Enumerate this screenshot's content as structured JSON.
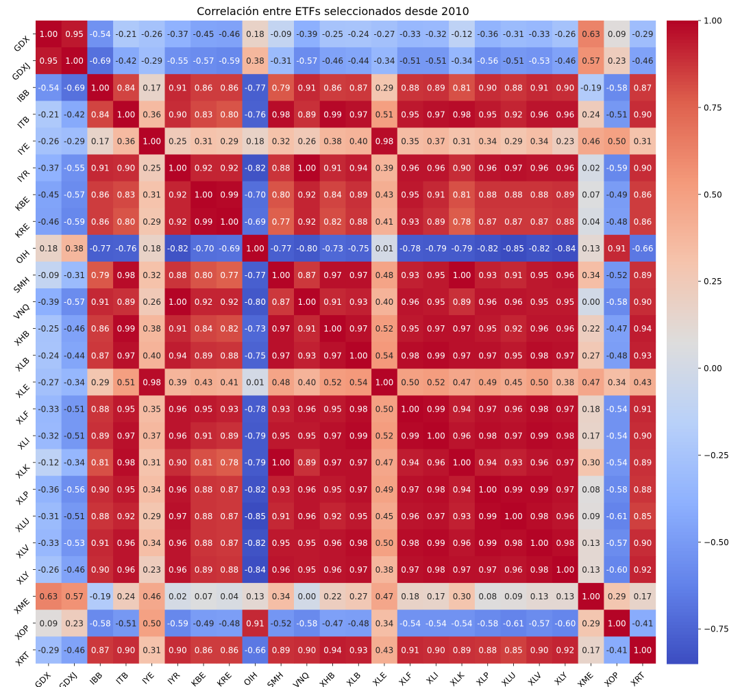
{
  "chart_data": {
    "type": "heatmap",
    "title": "Correlación entre ETFs seleccionados desde 2010",
    "xlabel": "",
    "ylabel": "",
    "labels": [
      "GDX",
      "GDXJ",
      "IBB",
      "ITB",
      "IYE",
      "IYR",
      "KBE",
      "KRE",
      "OIH",
      "SMH",
      "VNQ",
      "XHB",
      "XLB",
      "XLE",
      "XLF",
      "XLI",
      "XLK",
      "XLP",
      "XLU",
      "XLV",
      "XLY",
      "XME",
      "XOP",
      "XRT"
    ],
    "matrix": [
      [
        1.0,
        0.95,
        -0.54,
        -0.21,
        -0.26,
        -0.37,
        -0.45,
        -0.46,
        0.18,
        -0.09,
        -0.39,
        -0.25,
        -0.24,
        -0.27,
        -0.33,
        -0.32,
        -0.12,
        -0.36,
        -0.31,
        -0.33,
        -0.26,
        0.63,
        0.09,
        -0.29
      ],
      [
        0.95,
        1.0,
        -0.69,
        -0.42,
        -0.29,
        -0.55,
        -0.57,
        -0.59,
        0.38,
        -0.31,
        -0.57,
        -0.46,
        -0.44,
        -0.34,
        -0.51,
        -0.51,
        -0.34,
        -0.56,
        -0.51,
        -0.53,
        -0.46,
        0.57,
        0.23,
        -0.46
      ],
      [
        -0.54,
        -0.69,
        1.0,
        0.84,
        0.17,
        0.91,
        0.86,
        0.86,
        -0.77,
        0.79,
        0.91,
        0.86,
        0.87,
        0.29,
        0.88,
        0.89,
        0.81,
        0.9,
        0.88,
        0.91,
        0.9,
        -0.19,
        -0.58,
        0.87
      ],
      [
        -0.21,
        -0.42,
        0.84,
        1.0,
        0.36,
        0.9,
        0.83,
        0.8,
        -0.76,
        0.98,
        0.89,
        0.99,
        0.97,
        0.51,
        0.95,
        0.97,
        0.98,
        0.95,
        0.92,
        0.96,
        0.96,
        0.24,
        -0.51,
        0.9
      ],
      [
        -0.26,
        -0.29,
        0.17,
        0.36,
        1.0,
        0.25,
        0.31,
        0.29,
        0.18,
        0.32,
        0.26,
        0.38,
        0.4,
        0.98,
        0.35,
        0.37,
        0.31,
        0.34,
        0.29,
        0.34,
        0.23,
        0.46,
        0.5,
        0.31
      ],
      [
        -0.37,
        -0.55,
        0.91,
        0.9,
        0.25,
        1.0,
        0.92,
        0.92,
        -0.82,
        0.88,
        1.0,
        0.91,
        0.94,
        0.39,
        0.96,
        0.96,
        0.9,
        0.96,
        0.97,
        0.96,
        0.96,
        0.02,
        -0.59,
        0.9
      ],
      [
        -0.45,
        -0.57,
        0.86,
        0.83,
        0.31,
        0.92,
        1.0,
        0.99,
        -0.7,
        0.8,
        0.92,
        0.84,
        0.89,
        0.43,
        0.95,
        0.91,
        0.81,
        0.88,
        0.88,
        0.88,
        0.89,
        0.07,
        -0.49,
        0.86
      ],
      [
        -0.46,
        -0.59,
        0.86,
        0.8,
        0.29,
        0.92,
        0.99,
        1.0,
        -0.69,
        0.77,
        0.92,
        0.82,
        0.88,
        0.41,
        0.93,
        0.89,
        0.78,
        0.87,
        0.87,
        0.87,
        0.88,
        0.04,
        -0.48,
        0.86
      ],
      [
        0.18,
        0.38,
        -0.77,
        -0.76,
        0.18,
        -0.82,
        -0.7,
        -0.69,
        1.0,
        -0.77,
        -0.8,
        -0.73,
        -0.75,
        0.01,
        -0.78,
        -0.79,
        -0.79,
        -0.82,
        -0.85,
        -0.82,
        -0.84,
        0.13,
        0.91,
        -0.66
      ],
      [
        -0.09,
        -0.31,
        0.79,
        0.98,
        0.32,
        0.88,
        0.8,
        0.77,
        -0.77,
        1.0,
        0.87,
        0.97,
        0.97,
        0.48,
        0.93,
        0.95,
        1.0,
        0.93,
        0.91,
        0.95,
        0.96,
        0.34,
        -0.52,
        0.89
      ],
      [
        -0.39,
        -0.57,
        0.91,
        0.89,
        0.26,
        1.0,
        0.92,
        0.92,
        -0.8,
        0.87,
        1.0,
        0.91,
        0.93,
        0.4,
        0.96,
        0.95,
        0.89,
        0.96,
        0.96,
        0.95,
        0.95,
        0.0,
        -0.58,
        0.9
      ],
      [
        -0.25,
        -0.46,
        0.86,
        0.99,
        0.38,
        0.91,
        0.84,
        0.82,
        -0.73,
        0.97,
        0.91,
        1.0,
        0.97,
        0.52,
        0.95,
        0.97,
        0.97,
        0.95,
        0.92,
        0.96,
        0.96,
        0.22,
        -0.47,
        0.94
      ],
      [
        -0.24,
        -0.44,
        0.87,
        0.97,
        0.4,
        0.94,
        0.89,
        0.88,
        -0.75,
        0.97,
        0.93,
        0.97,
        1.0,
        0.54,
        0.98,
        0.99,
        0.97,
        0.97,
        0.95,
        0.98,
        0.97,
        0.27,
        -0.48,
        0.93
      ],
      [
        -0.27,
        -0.34,
        0.29,
        0.51,
        0.98,
        0.39,
        0.43,
        0.41,
        0.01,
        0.48,
        0.4,
        0.52,
        0.54,
        1.0,
        0.5,
        0.52,
        0.47,
        0.49,
        0.45,
        0.5,
        0.38,
        0.47,
        0.34,
        0.43
      ],
      [
        -0.33,
        -0.51,
        0.88,
        0.95,
        0.35,
        0.96,
        0.95,
        0.93,
        -0.78,
        0.93,
        0.96,
        0.95,
        0.98,
        0.5,
        1.0,
        0.99,
        0.94,
        0.97,
        0.96,
        0.98,
        0.97,
        0.18,
        -0.54,
        0.91
      ],
      [
        -0.32,
        -0.51,
        0.89,
        0.97,
        0.37,
        0.96,
        0.91,
        0.89,
        -0.79,
        0.95,
        0.95,
        0.97,
        0.99,
        0.52,
        0.99,
        1.0,
        0.96,
        0.98,
        0.97,
        0.99,
        0.98,
        0.17,
        -0.54,
        0.9
      ],
      [
        -0.12,
        -0.34,
        0.81,
        0.98,
        0.31,
        0.9,
        0.81,
        0.78,
        -0.79,
        1.0,
        0.89,
        0.97,
        0.97,
        0.47,
        0.94,
        0.96,
        1.0,
        0.94,
        0.93,
        0.96,
        0.97,
        0.3,
        -0.54,
        0.89
      ],
      [
        -0.36,
        -0.56,
        0.9,
        0.95,
        0.34,
        0.96,
        0.88,
        0.87,
        -0.82,
        0.93,
        0.96,
        0.95,
        0.97,
        0.49,
        0.97,
        0.98,
        0.94,
        1.0,
        0.99,
        0.99,
        0.97,
        0.08,
        -0.58,
        0.88
      ],
      [
        -0.31,
        -0.51,
        0.88,
        0.92,
        0.29,
        0.97,
        0.88,
        0.87,
        -0.85,
        0.91,
        0.96,
        0.92,
        0.95,
        0.45,
        0.96,
        0.97,
        0.93,
        0.99,
        1.0,
        0.98,
        0.96,
        0.09,
        -0.61,
        0.85
      ],
      [
        -0.33,
        -0.53,
        0.91,
        0.96,
        0.34,
        0.96,
        0.88,
        0.87,
        -0.82,
        0.95,
        0.95,
        0.96,
        0.98,
        0.5,
        0.98,
        0.99,
        0.96,
        0.99,
        0.98,
        1.0,
        0.98,
        0.13,
        -0.57,
        0.9
      ],
      [
        -0.26,
        -0.46,
        0.9,
        0.96,
        0.23,
        0.96,
        0.89,
        0.88,
        -0.84,
        0.96,
        0.95,
        0.96,
        0.97,
        0.38,
        0.97,
        0.98,
        0.97,
        0.97,
        0.96,
        0.98,
        1.0,
        0.13,
        -0.6,
        0.92
      ],
      [
        0.63,
        0.57,
        -0.19,
        0.24,
        0.46,
        0.02,
        0.07,
        0.04,
        0.13,
        0.34,
        0.0,
        0.22,
        0.27,
        0.47,
        0.18,
        0.17,
        0.3,
        0.08,
        0.09,
        0.13,
        0.13,
        1.0,
        0.29,
        0.17
      ],
      [
        0.09,
        0.23,
        -0.58,
        -0.51,
        0.5,
        -0.59,
        -0.49,
        -0.48,
        0.91,
        -0.52,
        -0.58,
        -0.47,
        -0.48,
        0.34,
        -0.54,
        -0.54,
        -0.54,
        -0.58,
        -0.61,
        -0.57,
        -0.6,
        0.29,
        1.0,
        -0.41
      ],
      [
        -0.29,
        -0.46,
        0.87,
        0.9,
        0.31,
        0.9,
        0.86,
        0.86,
        -0.66,
        0.89,
        0.9,
        0.94,
        0.93,
        0.43,
        0.91,
        0.9,
        0.89,
        0.88,
        0.85,
        0.9,
        0.92,
        0.17,
        -0.41,
        1.0
      ]
    ],
    "colorbar": {
      "min": -0.85,
      "max": 1.0,
      "ticks": [
        1.0,
        0.75,
        0.5,
        0.25,
        0.0,
        -0.25,
        -0.5,
        -0.75
      ],
      "tick_labels": [
        "1.00",
        "0.75",
        "0.50",
        "0.25",
        "0.00",
        "−0.25",
        "−0.50",
        "−0.75"
      ]
    },
    "colormap": "coolwarm",
    "annotation_format": "0.00",
    "legend": "colorbar-right"
  }
}
